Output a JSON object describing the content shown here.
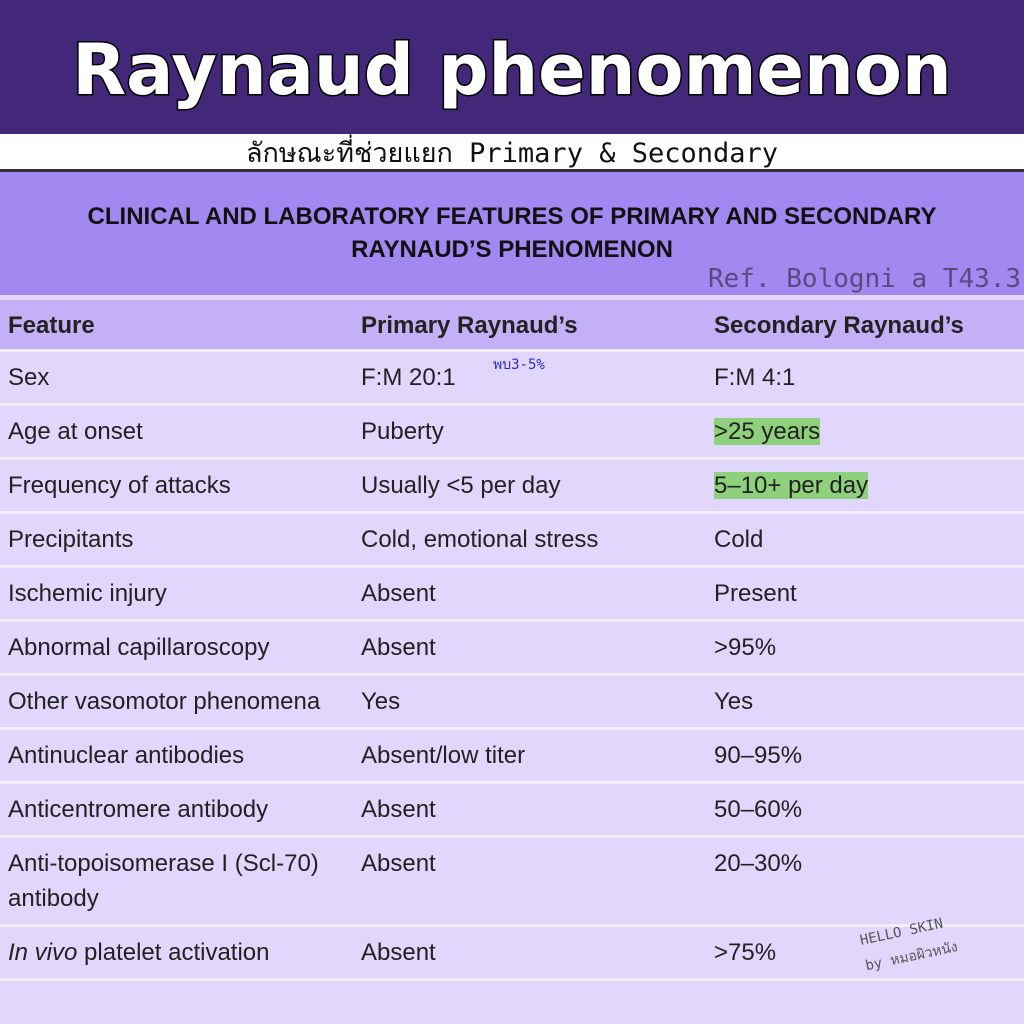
{
  "header": {
    "title": "Raynaud phenomenon",
    "subtitle": "ลักษณะที่ช่วยแยก Primary & Secondary"
  },
  "section": {
    "title_line1": "CLINICAL AND LABORATORY FEATURES OF PRIMARY AND SECONDARY",
    "title_line2": "RAYNAUD’S PHENOMENON",
    "reference": "Ref. Bologni a T43.3"
  },
  "table": {
    "columns": [
      "Feature",
      "Primary Raynaud’s",
      "Secondary Raynaud’s"
    ],
    "rows": [
      {
        "feature": "Sex",
        "primary": "F:M 20:1",
        "secondary": "F:M 4:1",
        "note": "พบ3-5%"
      },
      {
        "feature": "Age at onset",
        "primary": "Puberty",
        "secondary": ">25 years",
        "highlight": true
      },
      {
        "feature": "Frequency of attacks",
        "primary": "Usually <5 per day",
        "secondary": "5–10+ per day",
        "highlight": true
      },
      {
        "feature": "Precipitants",
        "primary": "Cold, emotional stress",
        "secondary": "Cold"
      },
      {
        "feature": "Ischemic injury",
        "primary": "Absent",
        "secondary": "Present"
      },
      {
        "feature": "Abnormal capillaroscopy",
        "primary": "Absent",
        "secondary": ">95%"
      },
      {
        "feature": "Other vasomotor phenomena",
        "primary": "Yes",
        "secondary": "Yes"
      },
      {
        "feature": "Antinuclear antibodies",
        "primary": "Absent/low titer",
        "secondary": "90–95%"
      },
      {
        "feature": "Anticentromere antibody",
        "primary": "Absent",
        "secondary": "50–60%"
      },
      {
        "feature": "Anti-topoisomerase I (Scl-70) antibody",
        "primary": "Absent",
        "secondary": "20–30%"
      },
      {
        "feature": "In vivo platelet activation",
        "primary": "Absent",
        "secondary": ">75%"
      }
    ]
  },
  "watermark": {
    "line1": "HELLO SKIN",
    "line2": "by หมอผิวหนัง"
  },
  "colors": {
    "header_bg": "#43287a",
    "section_bg": "#a288f1",
    "table_header_bg": "#c3b0f6",
    "row_bg": "#e1d6fb",
    "highlight": "#8ed07c"
  }
}
